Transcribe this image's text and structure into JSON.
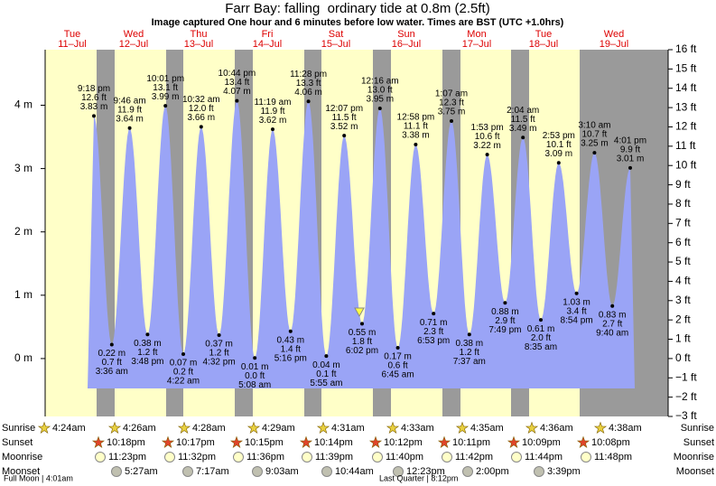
{
  "chart_data": {
    "type": "tide",
    "title": "Farr Bay: falling  ordinary tide at 0.8m (2.5ft)",
    "subtitle": "Image captured One hour and 6 minutes before low water. Times are BST (UTC +1.0hrs)",
    "days": [
      {
        "name": "Tue",
        "date": "11–Jul"
      },
      {
        "name": "Wed",
        "date": "12–Jul"
      },
      {
        "name": "Thu",
        "date": "13–Jul"
      },
      {
        "name": "Fri",
        "date": "14–Jul"
      },
      {
        "name": "Sat",
        "date": "15–Jul"
      },
      {
        "name": "Sun",
        "date": "16–Jul"
      },
      {
        "name": "Mon",
        "date": "17–Jul"
      },
      {
        "name": "Tue",
        "date": "18–Jul"
      },
      {
        "name": "Wed",
        "date": "19–Jul"
      }
    ],
    "categories": [
      "9:18 pm",
      "3:36 am",
      "9:46 am",
      "3:48 pm",
      "10:01 pm",
      "4:22 am",
      "10:32 am",
      "4:32 pm",
      "10:44 pm",
      "5:08 am",
      "11:19 am",
      "5:16 pm",
      "11:28 pm",
      "5:55 am",
      "12:07 pm",
      "6:02 pm",
      "12:16 am",
      "6:45 am",
      "12:58 pm",
      "6:53 pm",
      "1:07 am",
      "7:37 am",
      "1:53 pm",
      "7:49 pm",
      "2:04 am",
      "8:35 am",
      "2:53 pm",
      "8:54 pm",
      "3:10 am",
      "9:40 am",
      "4:01 pm"
    ],
    "values": [
      3.83,
      0.22,
      3.64,
      0.38,
      3.99,
      0.07,
      3.66,
      0.37,
      4.07,
      0.01,
      3.62,
      0.43,
      4.06,
      0.04,
      3.52,
      0.55,
      3.95,
      0.17,
      3.38,
      0.71,
      3.75,
      0.38,
      3.22,
      0.88,
      3.49,
      0.61,
      3.09,
      1.03,
      3.25,
      0.83,
      3.01
    ],
    "value_labels": [
      "3.83 m",
      "0.22 m",
      "3.64 m",
      "0.38 m",
      "3.99 m",
      "0.07 m",
      "3.66 m",
      "0.37 m",
      "4.07 m",
      "0.01 m",
      "3.62 m",
      "0.43 m",
      "4.06 m",
      "0.04 m",
      "3.52 m",
      "0.55 m",
      "3.95 m",
      "0.17 m",
      "3.38 m",
      "0.71 m",
      "3.75 m",
      "0.38 m",
      "3.22 m",
      "0.88 m",
      "3.49 m",
      "0.61 m",
      "3.09 m",
      "1.03 m",
      "3.25 m",
      "0.83 m",
      "3.01 m"
    ],
    "feet_labels": [
      "12.6 ft",
      "0.7 ft",
      "11.9 ft",
      "1.2 ft",
      "13.1 ft",
      "0.2 ft",
      "12.0 ft",
      "1.2 ft",
      "13.4 ft",
      "0.0 ft",
      "11.9 ft",
      "1.4 ft",
      "13.3 ft",
      "0.1 ft",
      "11.5 ft",
      "1.8 ft",
      "13.0 ft",
      "0.6 ft",
      "11.1 ft",
      "2.3 ft",
      "12.3 ft",
      "1.2 ft",
      "10.6 ft",
      "2.9 ft",
      "11.5 ft",
      "2.0 ft",
      "10.1 ft",
      "3.4 ft",
      "10.7 ft",
      "2.7 ft",
      "9.9 ft"
    ],
    "color": "#9aa4f6",
    "ylim": [
      -0.914,
      4.877
    ],
    "yticks": [
      {
        "value": 0,
        "label": "0 m"
      },
      {
        "value": 1,
        "label": "1 m"
      },
      {
        "value": 2,
        "label": "2 m"
      },
      {
        "value": 3,
        "label": "3 m"
      },
      {
        "value": 4,
        "label": "4 m"
      }
    ],
    "y2lim": [
      -3,
      16
    ],
    "y2ticks": [
      {
        "value": -3,
        "label": "−3 ft"
      },
      {
        "value": -2,
        "label": "−2 ft"
      },
      {
        "value": -1,
        "label": "−1 ft"
      },
      {
        "value": 0,
        "label": "0 ft"
      },
      {
        "value": 1,
        "label": "1 ft"
      },
      {
        "value": 2,
        "label": "2 ft"
      },
      {
        "value": 3,
        "label": "3 ft"
      },
      {
        "value": 4,
        "label": "4 ft"
      },
      {
        "value": 5,
        "label": "5 ft"
      },
      {
        "value": 6,
        "label": "6 ft"
      },
      {
        "value": 7,
        "label": "7 ft"
      },
      {
        "value": 8,
        "label": "8 ft"
      },
      {
        "value": 9,
        "label": "9 ft"
      },
      {
        "value": 10,
        "label": "10 ft"
      },
      {
        "value": 11,
        "label": "11 ft"
      },
      {
        "value": 12,
        "label": "12 ft"
      },
      {
        "value": 13,
        "label": "13 ft"
      },
      {
        "value": 14,
        "label": "14 ft"
      },
      {
        "value": 15,
        "label": "15 ft"
      },
      {
        "value": 16,
        "label": "16 ft"
      }
    ],
    "rows": [
      {
        "name": "Sunrise",
        "times": [
          "4:24am",
          "4:26am",
          "4:28am",
          "4:29am",
          "4:31am",
          "4:33am",
          "4:35am",
          "4:36am",
          "4:38am"
        ]
      },
      {
        "name": "Sunset",
        "times": [
          "10:18pm",
          "10:17pm",
          "10:15pm",
          "10:14pm",
          "10:12pm",
          "10:11pm",
          "10:09pm",
          "10:08pm"
        ]
      },
      {
        "name": "Moonrise",
        "times": [
          "11:23pm",
          "11:32pm",
          "11:36pm",
          "11:39pm",
          "11:40pm",
          "11:42pm",
          "11:44pm",
          "11:48pm"
        ]
      },
      {
        "name": "Moonset",
        "times": [
          "5:27am",
          "7:17am",
          "9:03am",
          "10:44am",
          "12:23pm",
          "2:00pm",
          "3:39pm"
        ]
      }
    ],
    "moon_phases": [
      "Full Moon | 4:01am",
      "Last Quarter | 8:12pm"
    ]
  }
}
